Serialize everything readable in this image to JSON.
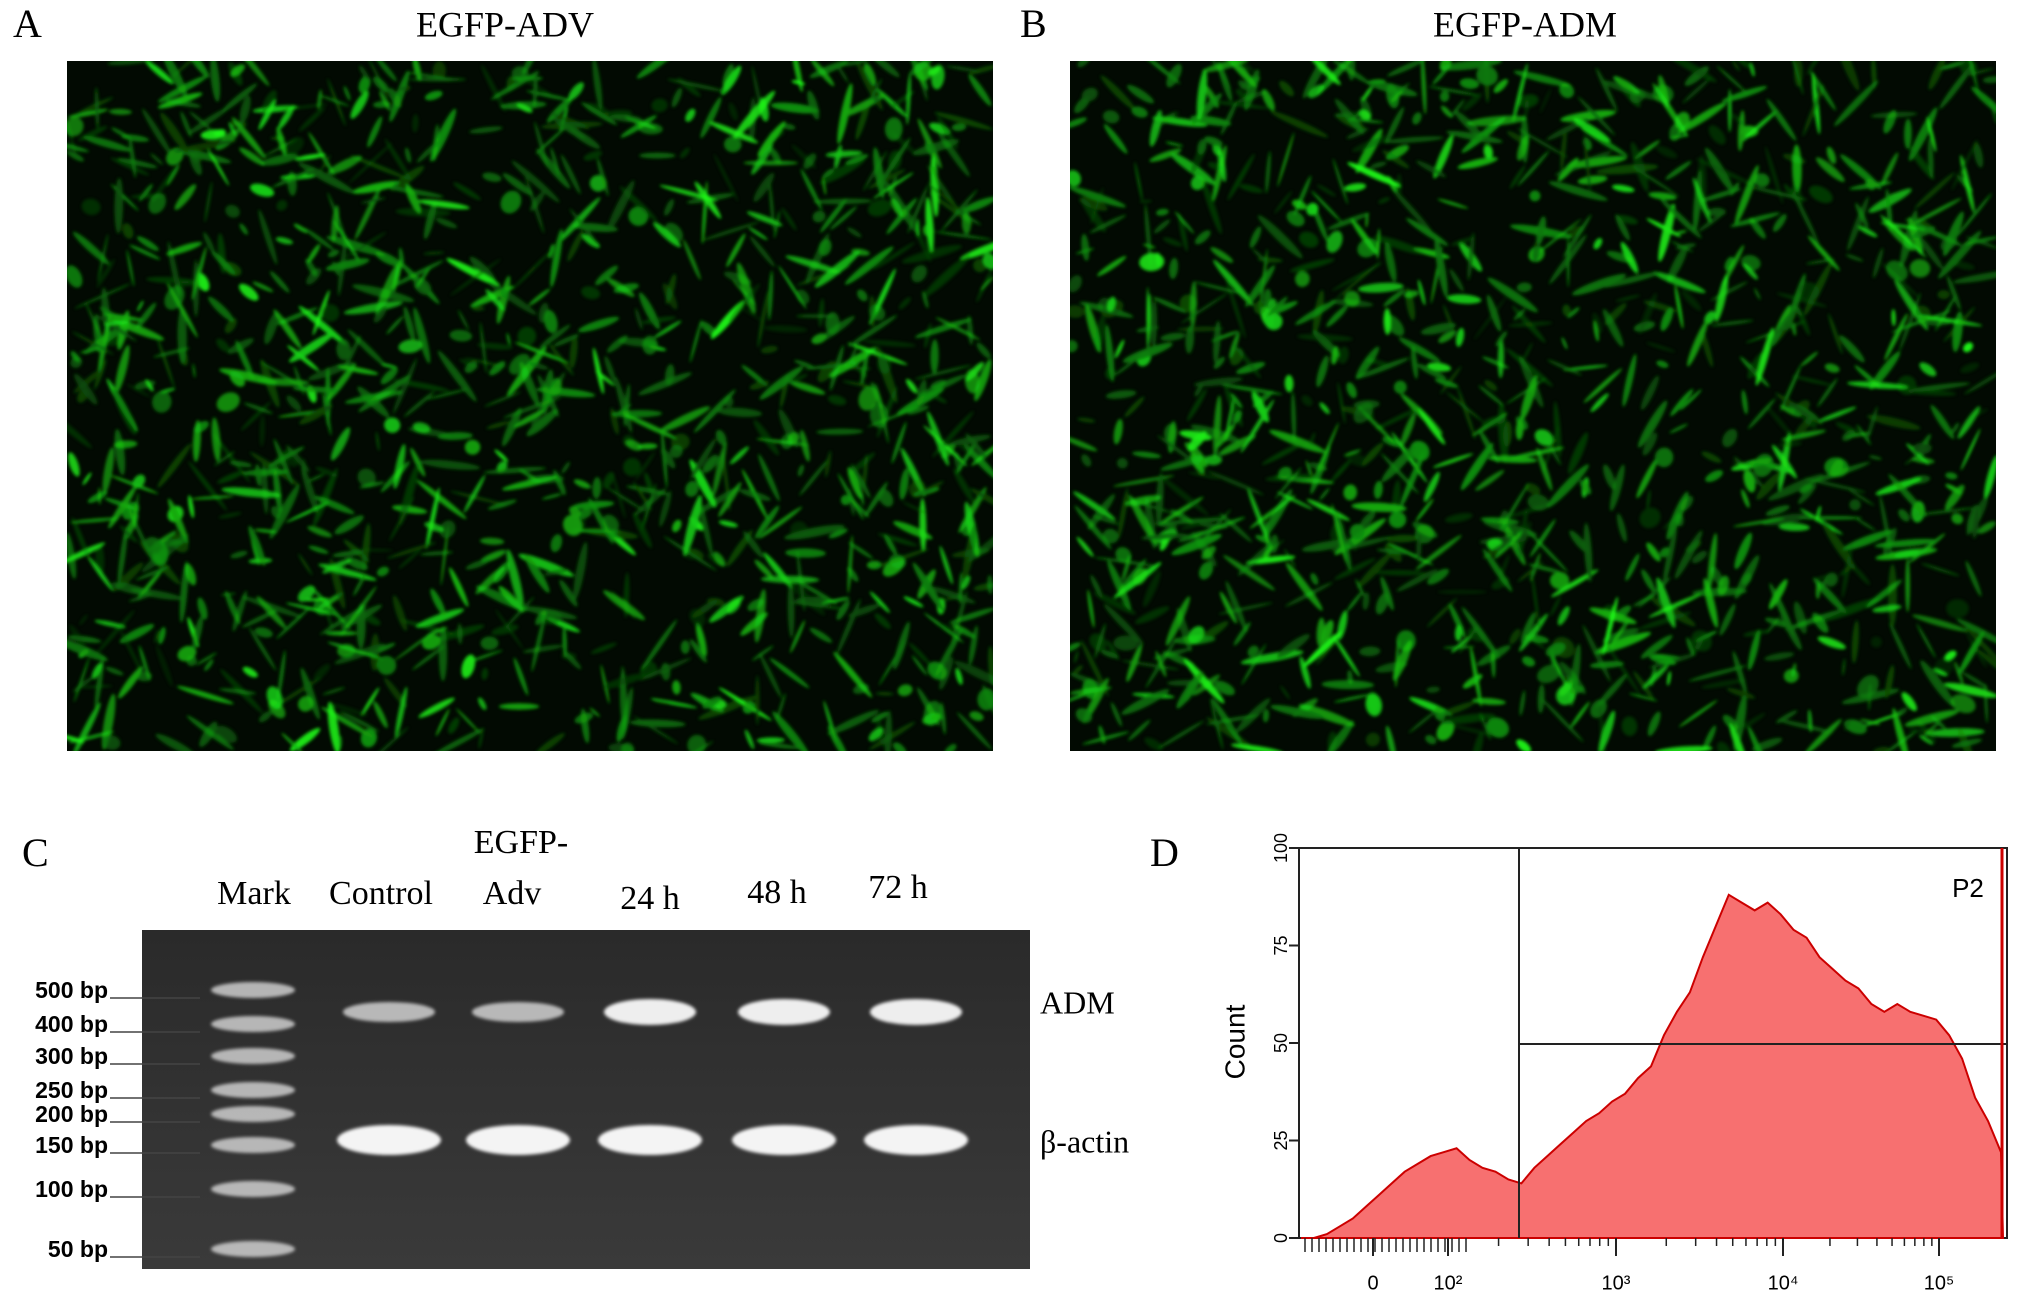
{
  "panels": {
    "a": {
      "label": "A",
      "title": "EGFP-ADV"
    },
    "b": {
      "label": "B",
      "title": "EGFP-ADM"
    },
    "c": {
      "label": "C"
    },
    "d": {
      "label": "D"
    }
  },
  "gel": {
    "lanes": [
      [
        "Mark"
      ],
      [
        "Control"
      ],
      [
        "EGFP-",
        "Adv"
      ],
      [
        "24 h"
      ],
      [
        "48 h"
      ],
      [
        "72 h"
      ]
    ],
    "ladder": [
      "500 bp",
      "400 bp",
      "300 bp",
      "250 bp",
      "200 bp",
      "150 bp",
      "100 bp",
      "50 bp"
    ],
    "bands": [
      "ADM",
      "β-actin"
    ]
  },
  "chart_data": {
    "type": "area",
    "ylabel": "Count",
    "gate": "P2",
    "color": "#f77070",
    "line_color": "#cc0000",
    "values": [
      0,
      0,
      1,
      3,
      5,
      8,
      11,
      14,
      17,
      19,
      21,
      22,
      23,
      20,
      18,
      17,
      15,
      14,
      18,
      21,
      24,
      27,
      30,
      32,
      35,
      37,
      41,
      44,
      52,
      58,
      63,
      72,
      80,
      88,
      86,
      84,
      86,
      83,
      79,
      77,
      72,
      69,
      66,
      64,
      60,
      58,
      60,
      58,
      57,
      56,
      52,
      46,
      36,
      30,
      22
    ],
    "ylim": [
      0,
      100
    ],
    "yticks": [
      0,
      25,
      50,
      75,
      100
    ],
    "xtick_labels": [
      "0",
      "10²",
      "10³",
      "10⁴",
      "10⁵"
    ]
  }
}
